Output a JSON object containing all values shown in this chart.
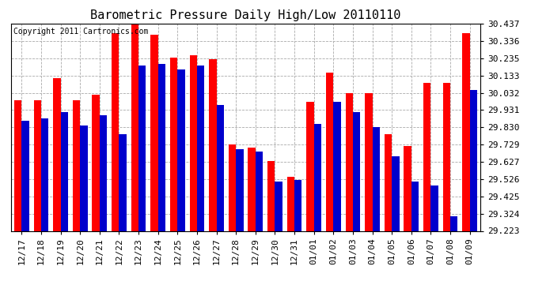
{
  "title": "Barometric Pressure Daily High/Low 20110110",
  "copyright": "Copyright 2011 Cartronics.com",
  "dates": [
    "12/17",
    "12/18",
    "12/19",
    "12/20",
    "12/21",
    "12/22",
    "12/23",
    "12/24",
    "12/25",
    "12/26",
    "12/27",
    "12/28",
    "12/29",
    "12/30",
    "12/31",
    "01/01",
    "01/02",
    "01/03",
    "01/04",
    "01/05",
    "01/06",
    "01/07",
    "01/08",
    "01/09"
  ],
  "highs": [
    29.99,
    29.99,
    30.12,
    29.99,
    30.02,
    30.38,
    30.44,
    30.37,
    30.24,
    30.25,
    30.23,
    29.73,
    29.71,
    29.63,
    29.54,
    29.98,
    30.15,
    30.03,
    30.03,
    29.79,
    29.72,
    30.09,
    30.09,
    30.38
  ],
  "lows": [
    29.87,
    29.88,
    29.92,
    29.84,
    29.9,
    29.79,
    30.19,
    30.2,
    30.17,
    30.19,
    29.96,
    29.7,
    29.69,
    29.51,
    29.52,
    29.85,
    29.98,
    29.92,
    29.83,
    29.66,
    29.51,
    29.49,
    29.31,
    30.05
  ],
  "yticks": [
    29.223,
    29.324,
    29.425,
    29.526,
    29.627,
    29.729,
    29.83,
    29.931,
    30.032,
    30.133,
    30.235,
    30.336,
    30.437
  ],
  "ymin": 29.223,
  "ymax": 30.437,
  "high_color": "#ff0000",
  "low_color": "#0000cc",
  "bg_color": "#ffffff",
  "grid_color": "#aaaaaa",
  "title_fontsize": 11,
  "copyright_fontsize": 7,
  "tick_fontsize": 8,
  "figwidth": 6.9,
  "figheight": 3.75,
  "dpi": 100
}
